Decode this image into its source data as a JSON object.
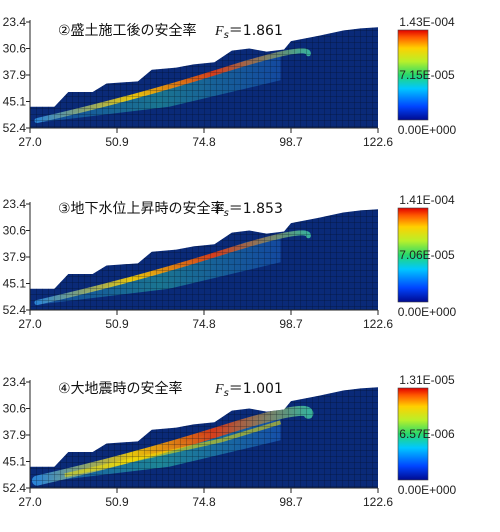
{
  "chart_data": [
    {
      "type": "heatmap",
      "title": "②盛土施工後の安全率",
      "fs_label": "Fs",
      "fs_value": "＝1.861",
      "x_ticks": [
        "27.0",
        "50.9",
        "74.8",
        "98.7",
        "122.6"
      ],
      "y_ticks": [
        "23.4",
        "30.6",
        "37.9",
        "45.1",
        "52.4"
      ],
      "xlim": [
        27.0,
        122.6
      ],
      "ylim": [
        23.4,
        52.4
      ],
      "colorbar": {
        "max": "1.43E-004",
        "mid": "7.15E-005",
        "min": "0.00E+000"
      }
    },
    {
      "type": "heatmap",
      "title": "③地下水位上昇時の安全率",
      "fs_label": "Fs",
      "fs_value": "＝1.853",
      "x_ticks": [
        "27.0",
        "50.9",
        "74.8",
        "98.7",
        "122.6"
      ],
      "y_ticks": [
        "23.4",
        "30.6",
        "37.9",
        "45.1",
        "52.4"
      ],
      "xlim": [
        27.0,
        122.6
      ],
      "ylim": [
        23.4,
        52.4
      ],
      "colorbar": {
        "max": "1.41E-004",
        "mid": "7.06E-005",
        "min": "0.00E+000"
      }
    },
    {
      "type": "heatmap",
      "title": "④大地震時の安全率",
      "fs_label": "Fs",
      "fs_value": "＝1.001",
      "x_ticks": [
        "27.0",
        "50.9",
        "74.8",
        "98.7",
        "122.6"
      ],
      "y_ticks": [
        "23.4",
        "30.6",
        "37.9",
        "45.1",
        "52.4"
      ],
      "xlim": [
        27.0,
        122.6
      ],
      "ylim": [
        23.4,
        52.4
      ],
      "colorbar": {
        "max": "1.31E-005",
        "mid": "6.57E-006",
        "min": "0.00E+000"
      }
    }
  ]
}
